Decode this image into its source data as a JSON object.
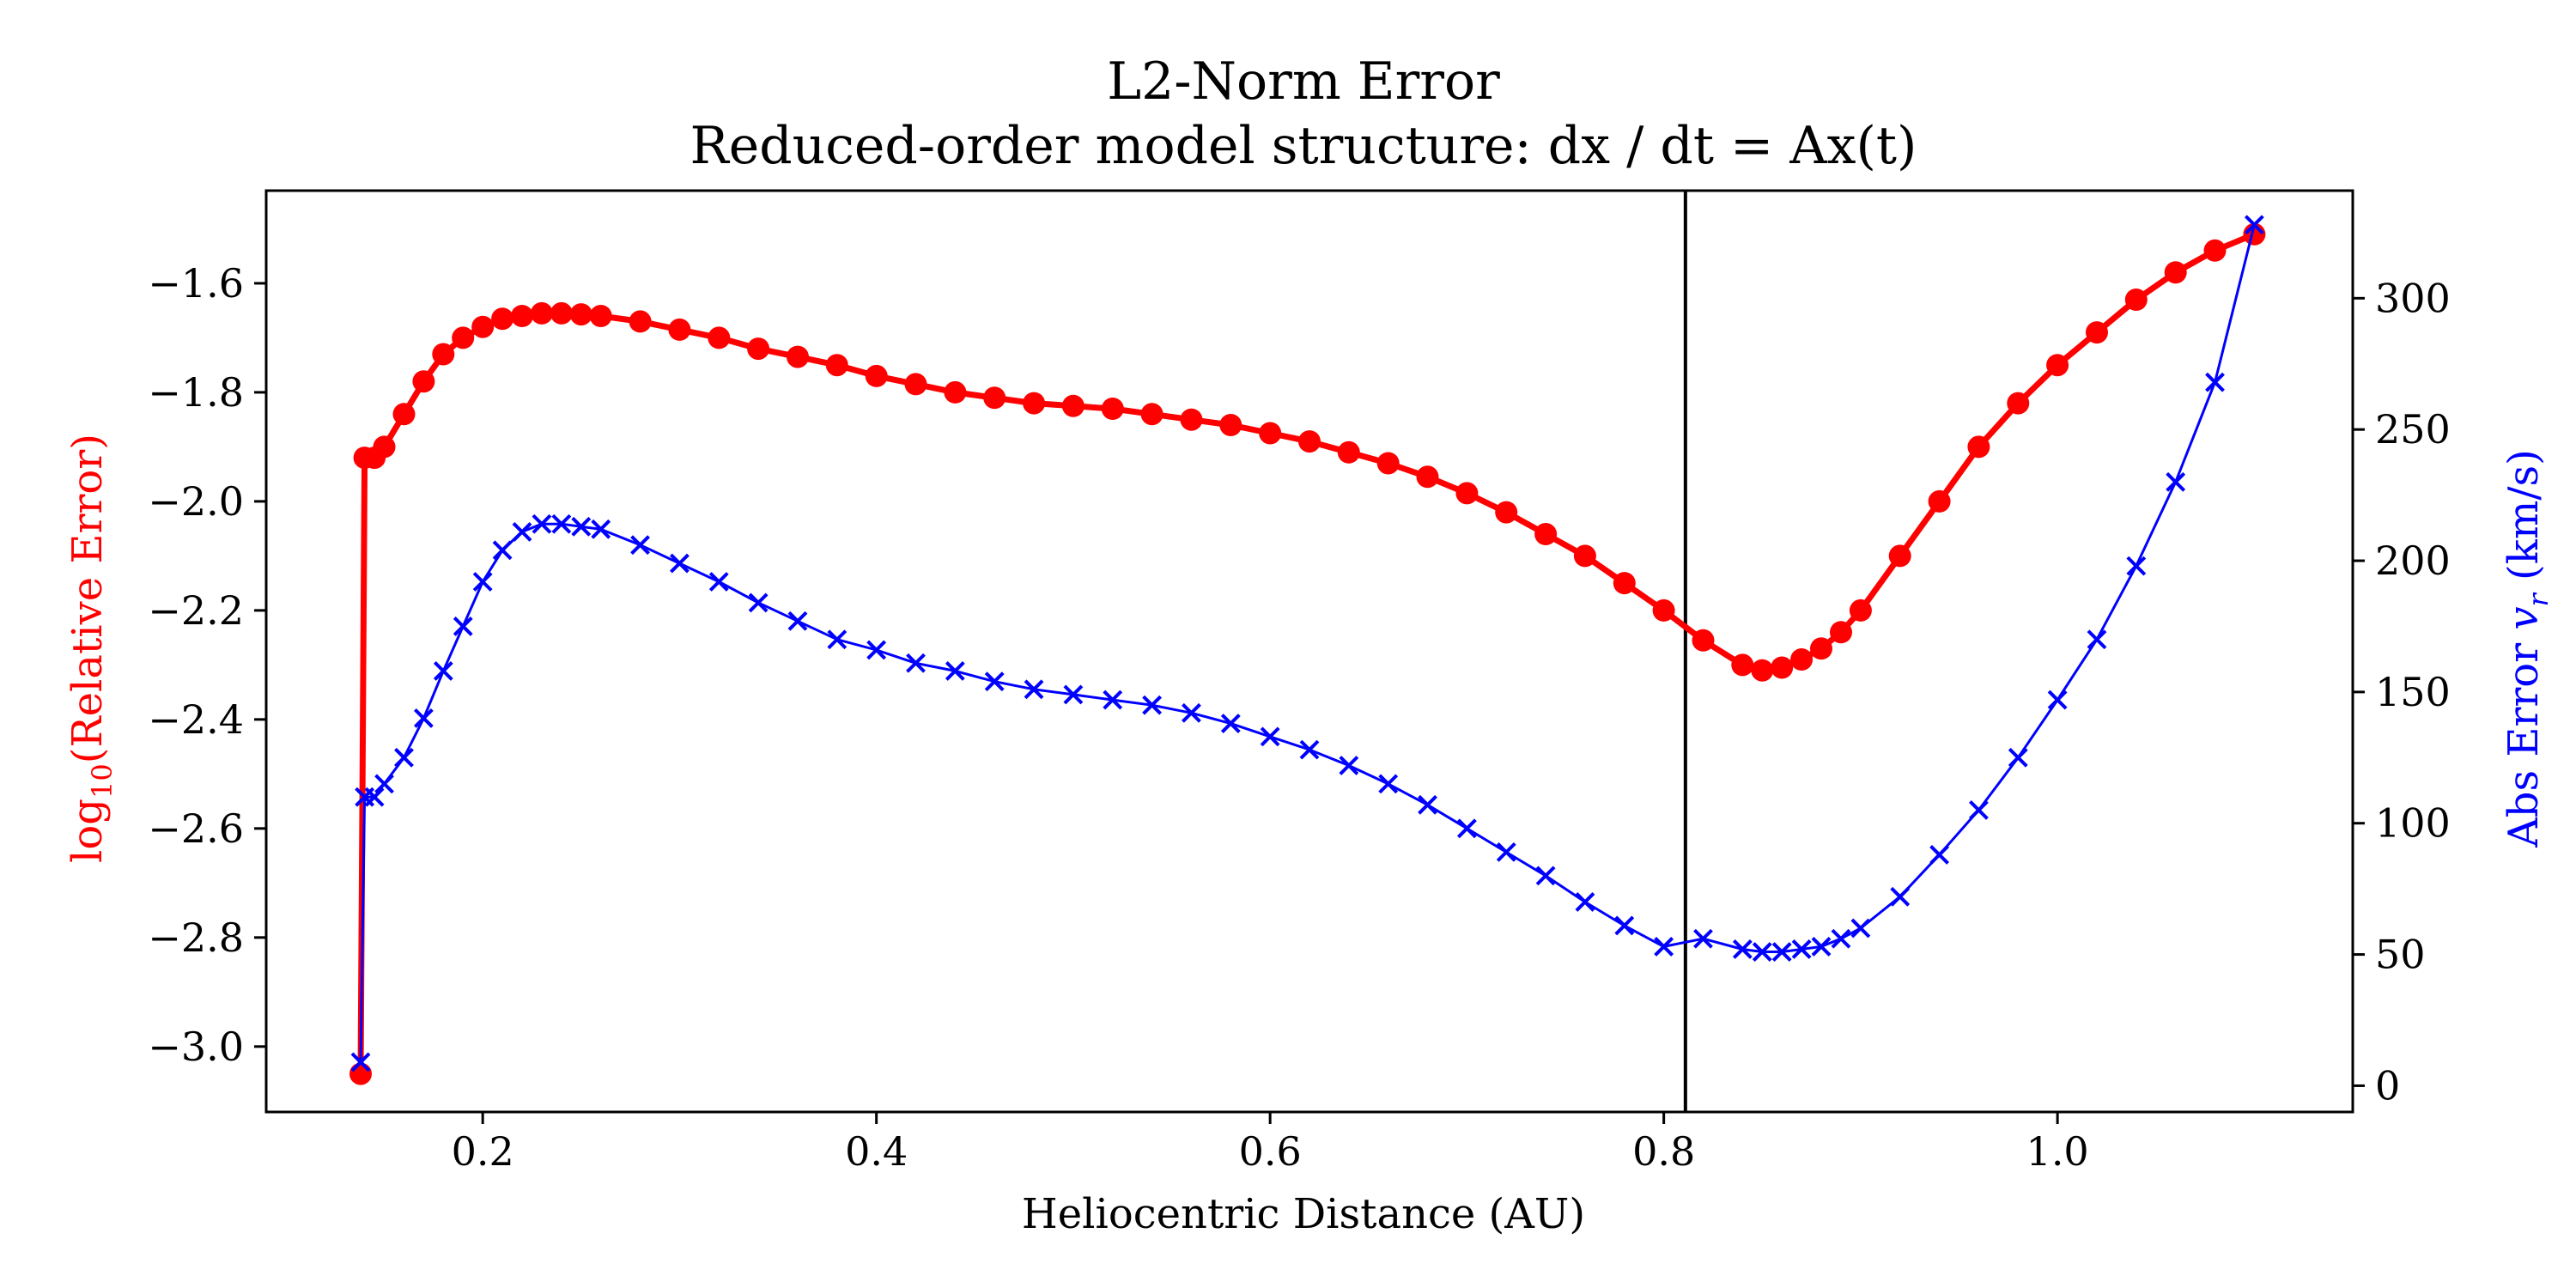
{
  "chart_data": {
    "type": "line",
    "title": "L2-Norm Error",
    "subtitle": "Reduced-order model structure: dx / dt = Ax(t)",
    "xlabel": "Heliocentric Distance (AU)",
    "ylabel_left": {
      "prefix": "log",
      "subscript": "10",
      "suffix": "(Relative Error)"
    },
    "ylabel_right": {
      "prefix": "Abs Error ",
      "variable": "v",
      "subscript": "r",
      "suffix": " (km/s)"
    },
    "xlim": [
      0.09,
      1.15
    ],
    "ylim_left": [
      -3.12,
      -1.43
    ],
    "ylim_right": [
      -10,
      341
    ],
    "xticks": [
      0.2,
      0.4,
      0.6,
      0.8,
      1.0
    ],
    "xtick_labels": [
      "0.2",
      "0.4",
      "0.6",
      "0.8",
      "1.0"
    ],
    "yticks_left": [
      -3.0,
      -2.8,
      -2.6,
      -2.4,
      -2.2,
      -2.0,
      -1.8,
      -1.6
    ],
    "ytick_labels_left": [
      "−3.0",
      "−2.8",
      "−2.6",
      "−2.4",
      "−2.2",
      "−2.0",
      "−1.8",
      "−1.6"
    ],
    "yticks_right": [
      0,
      50,
      100,
      150,
      200,
      250,
      300
    ],
    "ytick_labels_right": [
      "0",
      "50",
      "100",
      "150",
      "200",
      "250",
      "300"
    ],
    "vline_x": 0.811,
    "grid": false,
    "colors": {
      "left_series": "#ff0000",
      "right_series": "#0000ff",
      "vline": "#000000"
    },
    "series": [
      {
        "axis": "left",
        "marker": "circle",
        "x": [
          0.138,
          0.14,
          0.145,
          0.15,
          0.16,
          0.17,
          0.18,
          0.19,
          0.2,
          0.21,
          0.22,
          0.23,
          0.24,
          0.25,
          0.26,
          0.28,
          0.3,
          0.32,
          0.34,
          0.36,
          0.38,
          0.4,
          0.42,
          0.44,
          0.46,
          0.48,
          0.5,
          0.52,
          0.54,
          0.56,
          0.58,
          0.6,
          0.62,
          0.64,
          0.66,
          0.68,
          0.7,
          0.72,
          0.74,
          0.76,
          0.78,
          0.8,
          0.82,
          0.84,
          0.85,
          0.86,
          0.87,
          0.88,
          0.89,
          0.9,
          0.92,
          0.94,
          0.96,
          0.98,
          1.0,
          1.02,
          1.04,
          1.06,
          1.08,
          1.1
        ],
        "y": [
          -3.05,
          -1.92,
          -1.92,
          -1.9,
          -1.84,
          -1.78,
          -1.73,
          -1.7,
          -1.68,
          -1.665,
          -1.66,
          -1.655,
          -1.655,
          -1.657,
          -1.66,
          -1.67,
          -1.685,
          -1.7,
          -1.72,
          -1.735,
          -1.75,
          -1.77,
          -1.785,
          -1.8,
          -1.81,
          -1.82,
          -1.825,
          -1.83,
          -1.84,
          -1.85,
          -1.86,
          -1.875,
          -1.89,
          -1.91,
          -1.93,
          -1.955,
          -1.985,
          -2.02,
          -2.06,
          -2.1,
          -2.15,
          -2.2,
          -2.255,
          -2.3,
          -2.31,
          -2.305,
          -2.29,
          -2.27,
          -2.24,
          -2.2,
          -2.1,
          -2.0,
          -1.9,
          -1.82,
          -1.75,
          -1.69,
          -1.63,
          -1.58,
          -1.54,
          -1.51
        ]
      },
      {
        "axis": "right",
        "marker": "x",
        "x": [
          0.138,
          0.14,
          0.145,
          0.15,
          0.16,
          0.17,
          0.18,
          0.19,
          0.2,
          0.21,
          0.22,
          0.23,
          0.24,
          0.25,
          0.26,
          0.28,
          0.3,
          0.32,
          0.34,
          0.36,
          0.38,
          0.4,
          0.42,
          0.44,
          0.46,
          0.48,
          0.5,
          0.52,
          0.54,
          0.56,
          0.58,
          0.6,
          0.62,
          0.64,
          0.66,
          0.68,
          0.7,
          0.72,
          0.74,
          0.76,
          0.78,
          0.8,
          0.82,
          0.84,
          0.85,
          0.86,
          0.87,
          0.88,
          0.89,
          0.9,
          0.92,
          0.94,
          0.96,
          0.98,
          1.0,
          1.02,
          1.04,
          1.06,
          1.08,
          1.1
        ],
        "y": [
          9,
          110,
          110,
          115,
          125,
          140,
          158,
          175,
          192,
          204,
          211,
          214,
          214,
          213,
          212,
          206,
          199,
          192,
          184,
          177,
          170,
          166,
          161,
          158,
          154,
          151,
          149,
          147,
          145,
          142,
          138,
          133,
          128,
          122,
          115,
          107,
          98,
          89,
          80,
          70,
          61,
          53,
          56,
          52,
          51,
          51,
          52,
          53,
          56,
          60,
          72,
          88,
          105,
          125,
          147,
          170,
          198,
          230,
          268,
          328
        ]
      }
    ]
  }
}
